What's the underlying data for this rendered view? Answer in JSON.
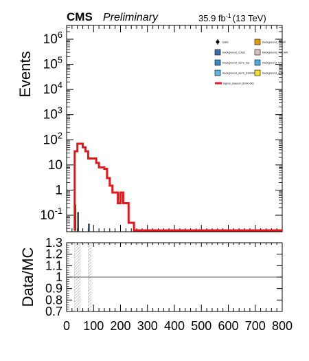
{
  "header": {
    "experiment": "CMS",
    "status": "Preliminary",
    "lumi": "35.9 fb",
    "lumi_sup": "-1",
    "energy": "(13 TeV)"
  },
  "colors": {
    "signal": "#e8161b",
    "axis": "#000000",
    "unity_line": "#555555",
    "uncertainty_hatch": "#888888"
  },
  "legend": {
    "columns": 2,
    "placement": "top-right",
    "entries": [
      {
        "label": "Data",
        "marker": "point",
        "color": "#000000"
      },
      {
        "label": "background_SMwh",
        "marker": "box",
        "color": "#e39f0b"
      },
      {
        "label": "background_ZJets",
        "marker": "box",
        "color": "#3e6aa8"
      },
      {
        "label": "background_VV_WH",
        "marker": "box",
        "color": "#d7c3c3"
      },
      {
        "label": "background_semi_top",
        "marker": "box",
        "color": "#3b86bc"
      },
      {
        "label": "background_Wh",
        "marker": "box",
        "color": "#4fa9e0"
      },
      {
        "label": "background_semi_SSWW",
        "marker": "box",
        "color": "#5ab4e5"
      },
      {
        "label": "background_ggH",
        "marker": "box",
        "color": "#f2e02c"
      },
      {
        "label": "signal_stausch [1000-50]",
        "marker": "line",
        "color": "#e8161b"
      }
    ]
  },
  "chart_data": [
    {
      "type": "bar",
      "panel": "main",
      "ylabel": "Events",
      "yscale": "log",
      "ylim": [
        0.02,
        3000000
      ],
      "xlim": [
        0,
        800
      ],
      "yticks": [
        "10^-1",
        "1",
        "10",
        "10^2",
        "10^3",
        "10^4",
        "10^5",
        "10^6"
      ],
      "bin_width": 10,
      "signal": {
        "name": "signal_stausch [1000-50]",
        "x": [
          30,
          40,
          50,
          60,
          70,
          80,
          90,
          100,
          110,
          120,
          130,
          140,
          150,
          160,
          170,
          180,
          190,
          200,
          210,
          220,
          230,
          240
        ],
        "values": [
          35,
          70,
          70,
          50,
          35,
          18,
          18,
          18,
          12,
          8,
          8,
          7,
          3,
          1.5,
          0.8,
          0.8,
          0.3,
          0.8,
          0.3,
          0.3,
          0.05,
          0.05
        ]
      },
      "background_stack": [
        {
          "name": "background_SMwh",
          "bins": [
            {
              "x": 30,
              "value": 0.26
            }
          ]
        },
        {
          "name": "background_ZJets",
          "bins": [
            {
              "x": 40,
              "value": 0.13
            },
            {
              "x": 80,
              "value": 0.045
            }
          ]
        }
      ]
    },
    {
      "type": "line",
      "panel": "ratio",
      "ylabel": "Data/MC",
      "ylim": [
        0.7,
        1.3
      ],
      "yticks": [
        "0.7",
        "0.8",
        "0.9",
        "1",
        "1.1",
        "1.2",
        "1.3"
      ],
      "xlim": [
        0,
        800
      ],
      "xticks": [
        "0",
        "100",
        "200",
        "300",
        "400",
        "500",
        "600",
        "700",
        "800"
      ],
      "reference_line": 1.0,
      "uncertainty_bands": [
        {
          "x0": 30,
          "x1": 50
        },
        {
          "x0": 80,
          "x1": 90
        }
      ]
    }
  ]
}
